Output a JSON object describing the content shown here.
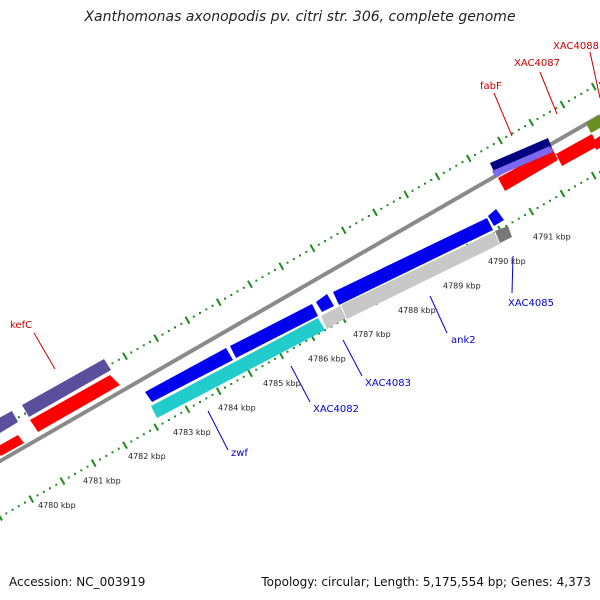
{
  "title": "Xanthomonas axonopodis pv. citri str. 306, complete genome",
  "footer": {
    "accession": "Accession: NC_003919",
    "summary": "Topology: circular; Length: 5,175,554 bp; Genes: 4,373"
  },
  "colors": {
    "backbone": "#8a8a8a",
    "ticks": "#1e8a1e",
    "label_red": "#cc0000",
    "label_blue": "#0000cc",
    "gene_red": "#ff0000",
    "gene_blue": "#0000ee",
    "gene_cyan": "#22cccc",
    "gene_gray": "#c8c8c8",
    "gene_navy": "#000080",
    "gene_slate": "#5a4f9c",
    "gene_lavender": "#7b68ee",
    "gene_olive": "#6b8e23",
    "gene_darkgray": "#777777"
  },
  "scale_labels": [
    "4780 kbp",
    "4781 kbp",
    "4782 kbp",
    "4783 kbp",
    "4784 kbp",
    "4785 kbp",
    "4786 kbp",
    "4787 kbp",
    "4788 kbp",
    "4789 kbp",
    "4790 kbp",
    "4791 kbp"
  ],
  "gene_labels": [
    {
      "text": "kefC",
      "color": "label_red"
    },
    {
      "text": "fabF",
      "color": "label_red"
    },
    {
      "text": "XAC4087",
      "color": "label_red"
    },
    {
      "text": "XAC4088",
      "color": "label_red"
    },
    {
      "text": "XAC4085",
      "color": "label_blue"
    },
    {
      "text": "ank2",
      "color": "label_blue"
    },
    {
      "text": "XAC4083",
      "color": "label_blue"
    },
    {
      "text": "XAC4082",
      "color": "label_blue"
    },
    {
      "text": "zwf",
      "color": "label_blue"
    }
  ]
}
